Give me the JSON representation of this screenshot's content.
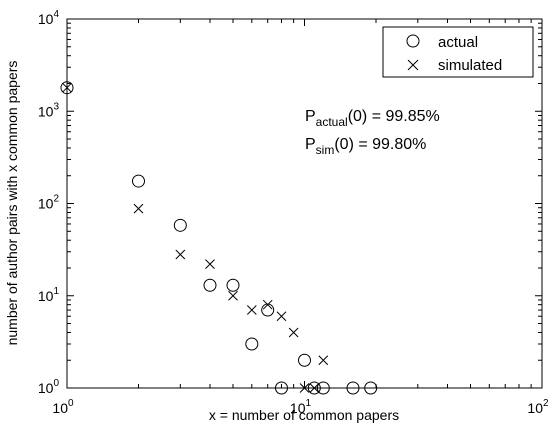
{
  "chart_data": {
    "type": "scatter",
    "title": "",
    "xlabel": "x = number of common papers",
    "ylabel": "number of author pairs with x common papers",
    "xscale": "log",
    "yscale": "log",
    "xlim": [
      1,
      100
    ],
    "ylim": [
      1,
      10000
    ],
    "grid": false,
    "x_ticks": [
      {
        "value": 1,
        "base": "10",
        "exp": "0"
      },
      {
        "value": 10,
        "base": "10",
        "exp": "1"
      },
      {
        "value": 100,
        "base": "10",
        "exp": "2"
      }
    ],
    "y_ticks": [
      {
        "value": 1,
        "base": "10",
        "exp": "0"
      },
      {
        "value": 10,
        "base": "10",
        "exp": "1"
      },
      {
        "value": 100,
        "base": "10",
        "exp": "2"
      },
      {
        "value": 1000,
        "base": "10",
        "exp": "3"
      },
      {
        "value": 10000,
        "base": "10",
        "exp": "4"
      }
    ],
    "legend_position": "top-right",
    "series": [
      {
        "name": "actual",
        "marker": "circle",
        "points": [
          [
            1,
            1800
          ],
          [
            2,
            175
          ],
          [
            3,
            58
          ],
          [
            4,
            13
          ],
          [
            5,
            13
          ],
          [
            6,
            3
          ],
          [
            7,
            7
          ],
          [
            8,
            1
          ],
          [
            10,
            2
          ],
          [
            11,
            1
          ],
          [
            12,
            1
          ],
          [
            16,
            1
          ],
          [
            19,
            1
          ]
        ]
      },
      {
        "name": "simulated",
        "marker": "x",
        "points": [
          [
            1,
            1800
          ],
          [
            2,
            88
          ],
          [
            3,
            28
          ],
          [
            4,
            22
          ],
          [
            5,
            10
          ],
          [
            6,
            7
          ],
          [
            7,
            8
          ],
          [
            8,
            6
          ],
          [
            9,
            4
          ],
          [
            10,
            1
          ],
          [
            11,
            1
          ],
          [
            12,
            2
          ]
        ]
      }
    ],
    "annotations": [
      {
        "prefix": "P",
        "subscript": "actual",
        "suffix": "(0) = 99.85%"
      },
      {
        "prefix": "P",
        "subscript": "sim",
        "suffix": "(0) = 99.80%"
      }
    ]
  }
}
